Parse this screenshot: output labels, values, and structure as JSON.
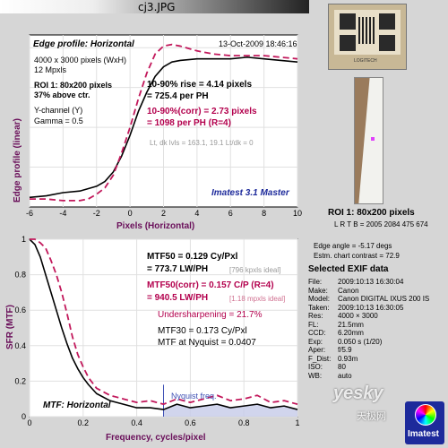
{
  "window": {
    "title": "cj3.JPG"
  },
  "edge_panel": {
    "title": "Edge profile: Horizontal",
    "date": "13-Oct-2009 18:46:16",
    "info": [
      "4000 x 3000 pixels (WxH)",
      "12 Mpxls"
    ],
    "roi": [
      "ROI 1:  80x200 pixels",
      "37% above ctr."
    ],
    "channel": [
      "Y-channel  (Y)",
      "Gamma = 0.5"
    ],
    "rise": [
      "10-90% rise = 4.14 pixels",
      "= 725.4 per PH"
    ],
    "rise_corr": [
      "10-90%(corr) = 2.73 pixels",
      "= 1098 per PH  (R=4)"
    ],
    "levels": "Lt, dk lvls = 163.1, 19.1    Lt/dk = 0",
    "brand": "Imatest 3.1 Master",
    "ylabel": "Edge profile (linear)",
    "xlabel": "Pixels (Horizontal)"
  },
  "mtf_panel": {
    "mtf50": [
      "MTF50 = 0.129 Cy/Pxl",
      "= 773.7 LW/PH"
    ],
    "mtf50_ideal": "[796 kpxls ideal]",
    "mtf50c": [
      "MTF50(corr) = 0.157 C/P  (R=4)",
      "= 940.5 LW/PH"
    ],
    "mtf50c_ideal": "[1.18 mpxls ideal]",
    "sharpening": "Undersharpening = 21.7%",
    "mtf30": "MTF30 = 0.173 Cy/Pxl",
    "nyq": "MTF at Nyquist = 0.0407",
    "nyquist_label": "Nyquist freq.",
    "panel_title": "MTF: Horizontal",
    "ylabel": "SFR (MTF)",
    "xlabel": "Frequency, cycles/pixel"
  },
  "right": {
    "roi_title": "ROI 1:  80x200 pixels",
    "roi_coords": "L R T B = 2005 2084  475 674",
    "edge_angle": "Edge angle = -5.17 degs",
    "chart_contrast": "Estm. chart contrast = 72.9",
    "exif_title": "Selected EXIF data",
    "exif": [
      {
        "k": "File:",
        "v": "2009:10:13 16:30:04"
      },
      {
        "k": "Make:",
        "v": "Canon"
      },
      {
        "k": "Model:",
        "v": "Canon DIGITAL IXUS 200 IS"
      },
      {
        "k": "Taken:",
        "v": "2009:10:13 16:30:05"
      },
      {
        "k": "Res:",
        "v": "4000 × 3000"
      },
      {
        "k": "FL:",
        "v": "21.5mm"
      },
      {
        "k": "CCD:",
        "v": "6.20mm"
      },
      {
        "k": "Exp:",
        "v": "0.050 s  (1/20)"
      },
      {
        "k": "Aper:",
        "v": "f/5.9"
      },
      {
        "k": "F_Dist:",
        "v": "0.93m"
      },
      {
        "k": "ISO:",
        "v": "80"
      },
      {
        "k": "WB:",
        "v": "auto"
      }
    ],
    "target_label": "LOGITECH",
    "watermark": "yesky",
    "watermark_cn": "天极网",
    "logo": "Imatest"
  },
  "chart_data": [
    {
      "type": "line",
      "title": "Edge profile: Horizontal",
      "xlabel": "Pixels (Horizontal)",
      "ylabel": "Edge profile (linear)",
      "xlim": [
        -6,
        10
      ],
      "x_ticks": [
        -6,
        -4,
        -2,
        0,
        2,
        4,
        6,
        8,
        10
      ],
      "grid": true,
      "series": [
        {
          "color": "#000000",
          "style": "solid",
          "x": [
            -6,
            -5,
            -4,
            -3,
            -2,
            -1.5,
            -1,
            -0.5,
            0,
            0.5,
            1,
            1.5,
            2,
            2.5,
            3,
            4,
            5,
            6,
            7,
            8,
            9,
            10
          ],
          "y": [
            0.06,
            0.07,
            0.09,
            0.1,
            0.13,
            0.16,
            0.22,
            0.32,
            0.45,
            0.6,
            0.72,
            0.82,
            0.88,
            0.91,
            0.92,
            0.93,
            0.93,
            0.93,
            0.94,
            0.93,
            0.92,
            0.91
          ]
        },
        {
          "color": "#c2185b",
          "style": "dashed",
          "x": [
            -6,
            -5,
            -4,
            -3,
            -2.5,
            -2,
            -1.5,
            -1,
            -0.5,
            0,
            0.5,
            1,
            1.5,
            2,
            2.5,
            3,
            4,
            5,
            6,
            7,
            8,
            9,
            10
          ],
          "y": [
            0.05,
            0.05,
            0.04,
            0.04,
            0.05,
            0.08,
            0.12,
            0.2,
            0.34,
            0.5,
            0.68,
            0.84,
            0.96,
            1.01,
            1.02,
            1.01,
            0.98,
            0.96,
            0.95,
            0.95,
            0.95,
            0.94,
            0.93
          ]
        }
      ]
    },
    {
      "type": "line",
      "title": "MTF: Horizontal",
      "xlabel": "Frequency, cycles/pixel",
      "ylabel": "SFR (MTF)",
      "xlim": [
        0,
        1
      ],
      "ylim": [
        0,
        1
      ],
      "x_ticks": [
        0,
        0.2,
        0.4,
        0.6,
        0.8,
        1
      ],
      "y_ticks": [
        0,
        0.2,
        0.4,
        0.6,
        0.8,
        1
      ],
      "grid": true,
      "nyquist_x": 0.5,
      "series": [
        {
          "color": "#000000",
          "style": "solid",
          "x": [
            0,
            0.02,
            0.04,
            0.06,
            0.08,
            0.1,
            0.12,
            0.14,
            0.16,
            0.18,
            0.2,
            0.22,
            0.25,
            0.3,
            0.35,
            0.4,
            0.45,
            0.5,
            0.55,
            0.6,
            0.65,
            0.7,
            0.75,
            0.8,
            0.85,
            0.9,
            0.95,
            1.0
          ],
          "y": [
            1.0,
            0.97,
            0.9,
            0.8,
            0.7,
            0.6,
            0.5,
            0.41,
            0.33,
            0.27,
            0.22,
            0.18,
            0.13,
            0.09,
            0.07,
            0.05,
            0.05,
            0.04,
            0.07,
            0.05,
            0.06,
            0.07,
            0.05,
            0.06,
            0.07,
            0.05,
            0.06,
            0.04
          ]
        },
        {
          "color": "#c2185b",
          "style": "dashed",
          "x": [
            0,
            0.02,
            0.04,
            0.06,
            0.08,
            0.1,
            0.12,
            0.14,
            0.16,
            0.18,
            0.2,
            0.22,
            0.25,
            0.3,
            0.35,
            0.4,
            0.45,
            0.5,
            0.55,
            0.6,
            0.65,
            0.7,
            0.75,
            0.8,
            0.85,
            0.9,
            0.95,
            1.0
          ],
          "y": [
            1.0,
            1.0,
            0.98,
            0.95,
            0.88,
            0.8,
            0.7,
            0.58,
            0.45,
            0.35,
            0.28,
            0.22,
            0.16,
            0.12,
            0.1,
            0.08,
            0.09,
            0.07,
            0.1,
            0.08,
            0.1,
            0.12,
            0.09,
            0.1,
            0.12,
            0.08,
            0.09,
            0.07
          ]
        }
      ]
    }
  ]
}
